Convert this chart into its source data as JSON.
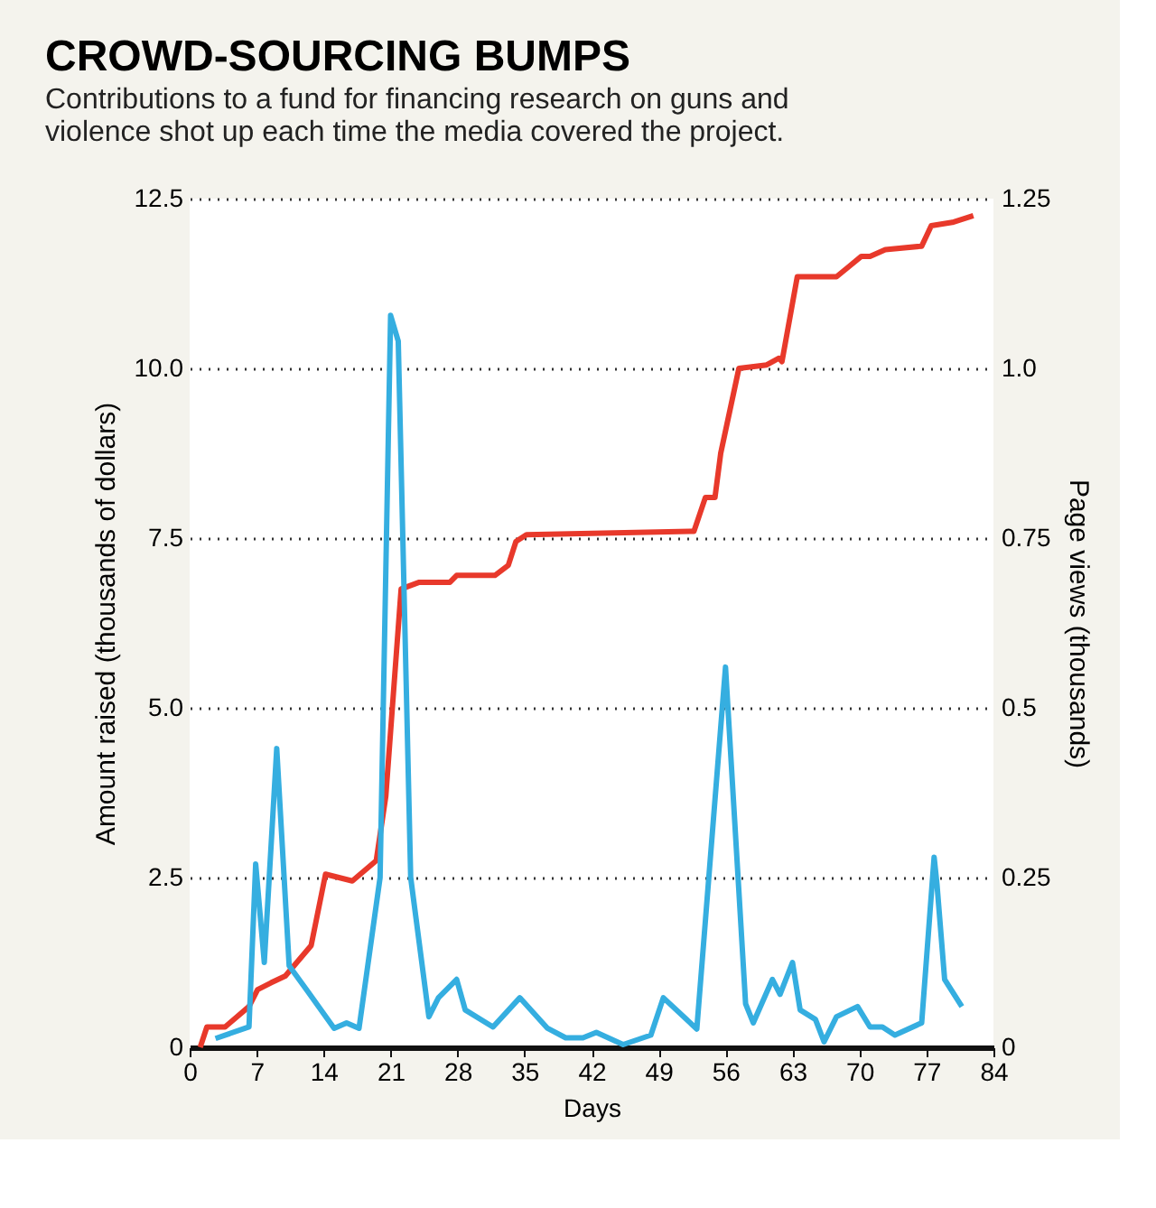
{
  "chart_data": {
    "type": "line",
    "title": "CROWD-SOURCING BUMPS",
    "subtitle": [
      "Contributions to a fund for financing research on guns and",
      "violence shot up each time the media covered the project."
    ],
    "xlabel": "Days",
    "ylabel": "Amount raised (thousands of dollars)",
    "y2label": "Page views (thousands)",
    "xlim": [
      0,
      84
    ],
    "xticks": [
      0,
      7,
      14,
      21,
      28,
      35,
      42,
      49,
      56,
      63,
      70,
      77,
      84
    ],
    "ylim": [
      0,
      12.5
    ],
    "yticks": [
      0,
      2.5,
      {
        "value": 5,
        "label": "5.0"
      },
      7.5,
      {
        "value": 10,
        "label": "10.0"
      },
      12.5
    ],
    "y2lim": [
      0,
      1.25
    ],
    "y2ticks": [
      0,
      0.25,
      0.5,
      0.75,
      {
        "value": 1,
        "label": "1.0"
      },
      1.25
    ],
    "grid": "y",
    "line_style": "solid",
    "series": [
      {
        "color": "#e8392b",
        "axis": "y",
        "x": [
          1.1,
          1.8,
          3.7,
          6.2,
          7.1,
          8.5,
          10.0,
          12.7,
          14.2,
          17.0,
          19.5,
          20.5,
          22.1,
          24.0,
          27.2,
          27.9,
          31.9,
          33.3,
          34.1,
          35.2,
          52.7,
          53.9,
          54.9,
          55.5,
          57.4,
          60.3,
          61.6,
          61.9,
          63.5,
          67.6,
          68.9,
          70.2,
          71.1,
          72.7,
          76.5,
          77.5,
          79.7,
          81.9
        ],
        "values": [
          0,
          0.3,
          0.3,
          0.6,
          0.85,
          0.95,
          1.05,
          1.5,
          2.55,
          2.45,
          2.75,
          3.7,
          6.75,
          6.85,
          6.85,
          6.95,
          6.95,
          7.1,
          7.45,
          7.55,
          7.6,
          8.1,
          8.1,
          8.75,
          10.0,
          10.05,
          10.15,
          10.1,
          11.35,
          11.35,
          11.5,
          11.65,
          11.65,
          11.75,
          11.8,
          12.1,
          12.15,
          12.25
        ]
      },
      {
        "color": "#35aee0",
        "axis": "y2",
        "x": [
          2.7,
          6.2,
          6.9,
          7.8,
          9.1,
          10.4,
          12.3,
          15.1,
          16.4,
          17.7,
          19.9,
          21.0,
          21.8,
          23.1,
          25.0,
          26.0,
          27.9,
          28.8,
          31.7,
          34.5,
          37.4,
          39.3,
          41.1,
          42.5,
          45.3,
          48.2,
          49.5,
          53.0,
          56.0,
          58.1,
          58.9,
          60.9,
          61.7,
          63.0,
          63.8,
          65.4,
          66.3,
          67.6,
          69.8,
          71.1,
          72.4,
          73.7,
          76.5,
          77.8,
          78.1,
          78.9,
          80.7
        ],
        "values": [
          0.013,
          0.03,
          0.27,
          0.125,
          0.44,
          0.12,
          0.083,
          0.028,
          0.036,
          0.028,
          0.25,
          1.078,
          1.04,
          0.25,
          0.045,
          0.073,
          0.1,
          0.055,
          0.03,
          0.073,
          0.028,
          0.014,
          0.014,
          0.022,
          0.004,
          0.018,
          0.073,
          0.027,
          0.56,
          0.064,
          0.036,
          0.1,
          0.078,
          0.125,
          0.055,
          0.041,
          0.008,
          0.045,
          0.06,
          0.03,
          0.03,
          0.018,
          0.036,
          0.28,
          0.24,
          0.1,
          0.06
        ]
      }
    ]
  }
}
